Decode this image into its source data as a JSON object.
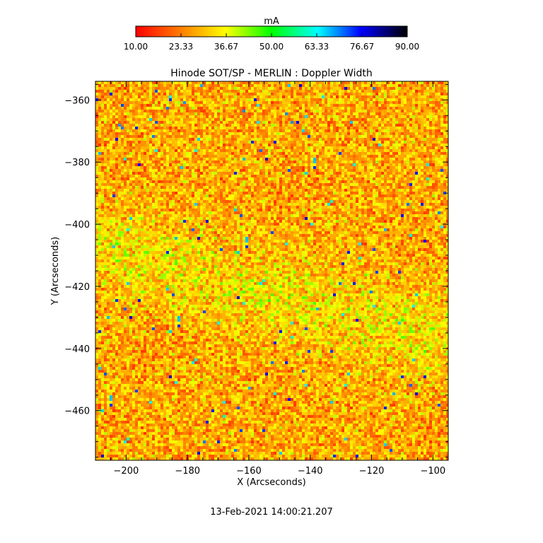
{
  "chart_data": {
    "type": "heatmap",
    "title": "Hinode SOT/SP - MERLIN : Doppler Width",
    "xlabel": "X (Arcseconds)",
    "ylabel": "Y (Arcseconds)",
    "xlim": [
      -210,
      -95
    ],
    "ylim": [
      -476,
      -354
    ],
    "xticks": [
      -200,
      -180,
      -160,
      -140,
      -120,
      -100
    ],
    "yticks": [
      -360,
      -380,
      -400,
      -420,
      -440,
      -460
    ],
    "x_tick_labels": [
      "−200",
      "−180",
      "−160",
      "−140",
      "−120",
      "−100"
    ],
    "y_tick_labels": [
      "−360",
      "−380",
      "−400",
      "−420",
      "−440",
      "−460"
    ],
    "colorbar": {
      "label": "mA",
      "min": 10.0,
      "max": 90.0,
      "tick_values": [
        10,
        23.33,
        36.67,
        50,
        63.33,
        76.67,
        90
      ],
      "tick_labels": [
        "10.00",
        "23.33",
        "36.67",
        "50.00",
        "63.33",
        "76.67",
        "90.00"
      ],
      "colormap": [
        "#ff0000",
        "#ff8000",
        "#ffff00",
        "#00ff00",
        "#00ffff",
        "#0000ff",
        "#000000"
      ]
    },
    "field_description": "Granular Doppler width map, values mostly between about 18 and 42 mA with sparse higher values",
    "typical_value": 28,
    "grid": false
  },
  "footer": {
    "timestamp": "13-Feb-2021 14:00:21.207"
  }
}
